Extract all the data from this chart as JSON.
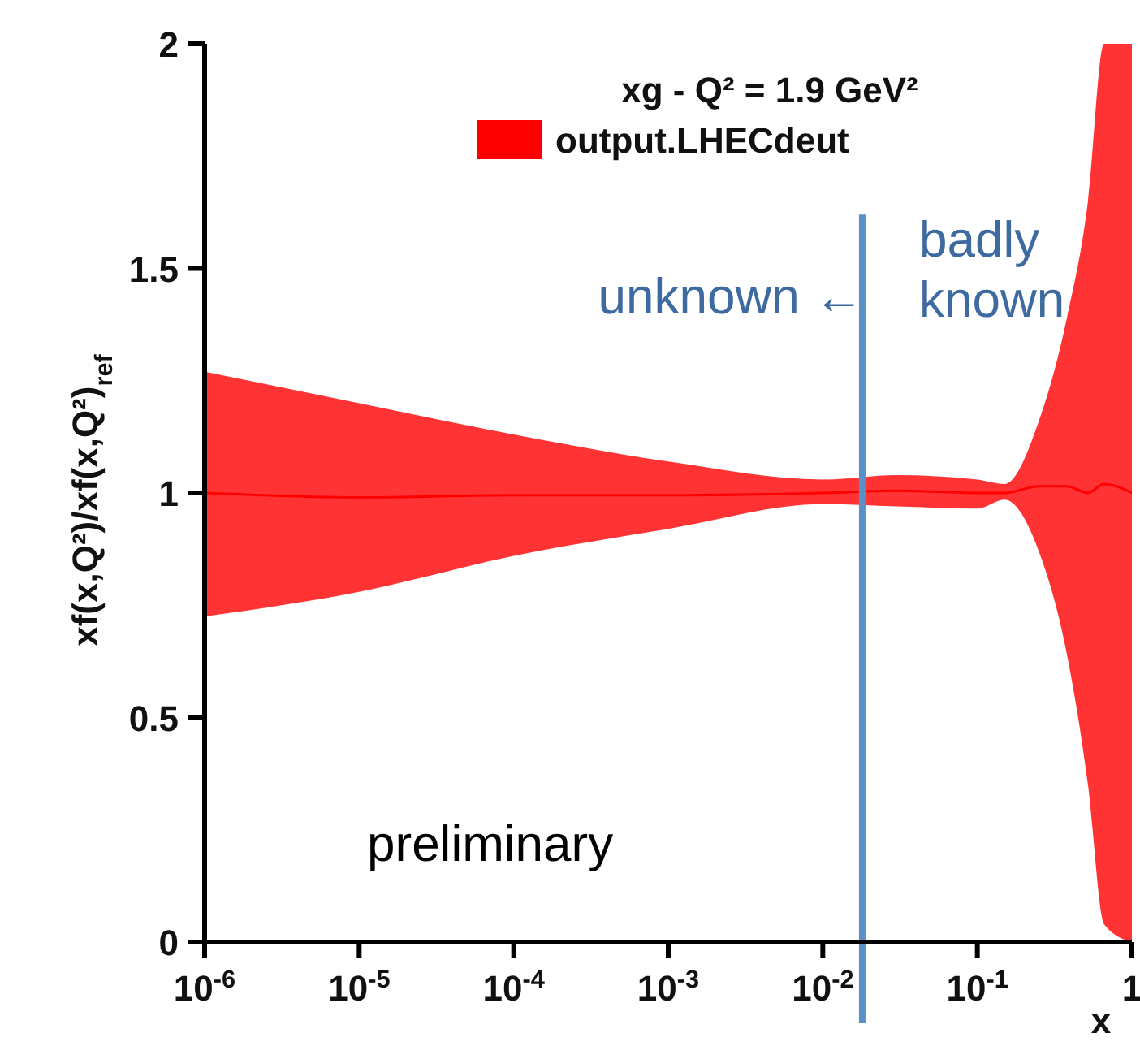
{
  "chart_data": {
    "type": "line",
    "xlabel": "x",
    "ylabel": "xf(x,Q²)/xf(x,Q²)$_{ref}$",
    "legend_title": "xg - Q² = 1.9 GeV²",
    "legend": "top right",
    "log": "x",
    "xlim": [
      1e-06,
      1
    ],
    "xticks": [
      {
        "value": 1e-06,
        "label": "10$^{-6}$"
      },
      {
        "value": 1e-05,
        "label": "10$^{-5}$"
      },
      {
        "value": 0.0001,
        "label": "10$^{-4}$"
      },
      {
        "value": 0.001,
        "label": "10$^{-3}$"
      },
      {
        "value": 0.01,
        "label": "10$^{-2}$"
      },
      {
        "value": 0.1,
        "label": "10$^{-1}$"
      },
      1
    ],
    "ylim": [
      0,
      2
    ],
    "yticks": [
      0,
      0.5,
      1,
      1.5,
      2
    ],
    "series": [
      {
        "name": "output.LHECdeut",
        "color": "#ff0000",
        "x": [
          1e-06,
          1e-05,
          0.0001,
          0.001,
          0.01,
          0.03,
          0.1,
          0.15,
          0.25,
          0.38,
          0.52,
          0.66,
          1
        ],
        "values": [
          1,
          0.99,
          0.995,
          0.995,
          1,
          1.005,
          1,
          1,
          1.015,
          1.015,
          1,
          1.02,
          1
        ],
        "lower": [
          0.725,
          0.78,
          0.86,
          0.92,
          0.975,
          0.97,
          0.965,
          0.985,
          0.87,
          0.64,
          0.35,
          0.04,
          0
        ],
        "upper": [
          1.27,
          1.2,
          1.13,
          1.07,
          1.03,
          1.04,
          1.03,
          1.02,
          1.16,
          1.39,
          1.65,
          2,
          2
        ]
      }
    ],
    "ref_lines": [
      {
        "axis": "x",
        "value": 0.018,
        "color": "#5b8fc7"
      }
    ],
    "annotations": [
      "unknown ←",
      "badly known",
      "preliminary"
    ]
  }
}
